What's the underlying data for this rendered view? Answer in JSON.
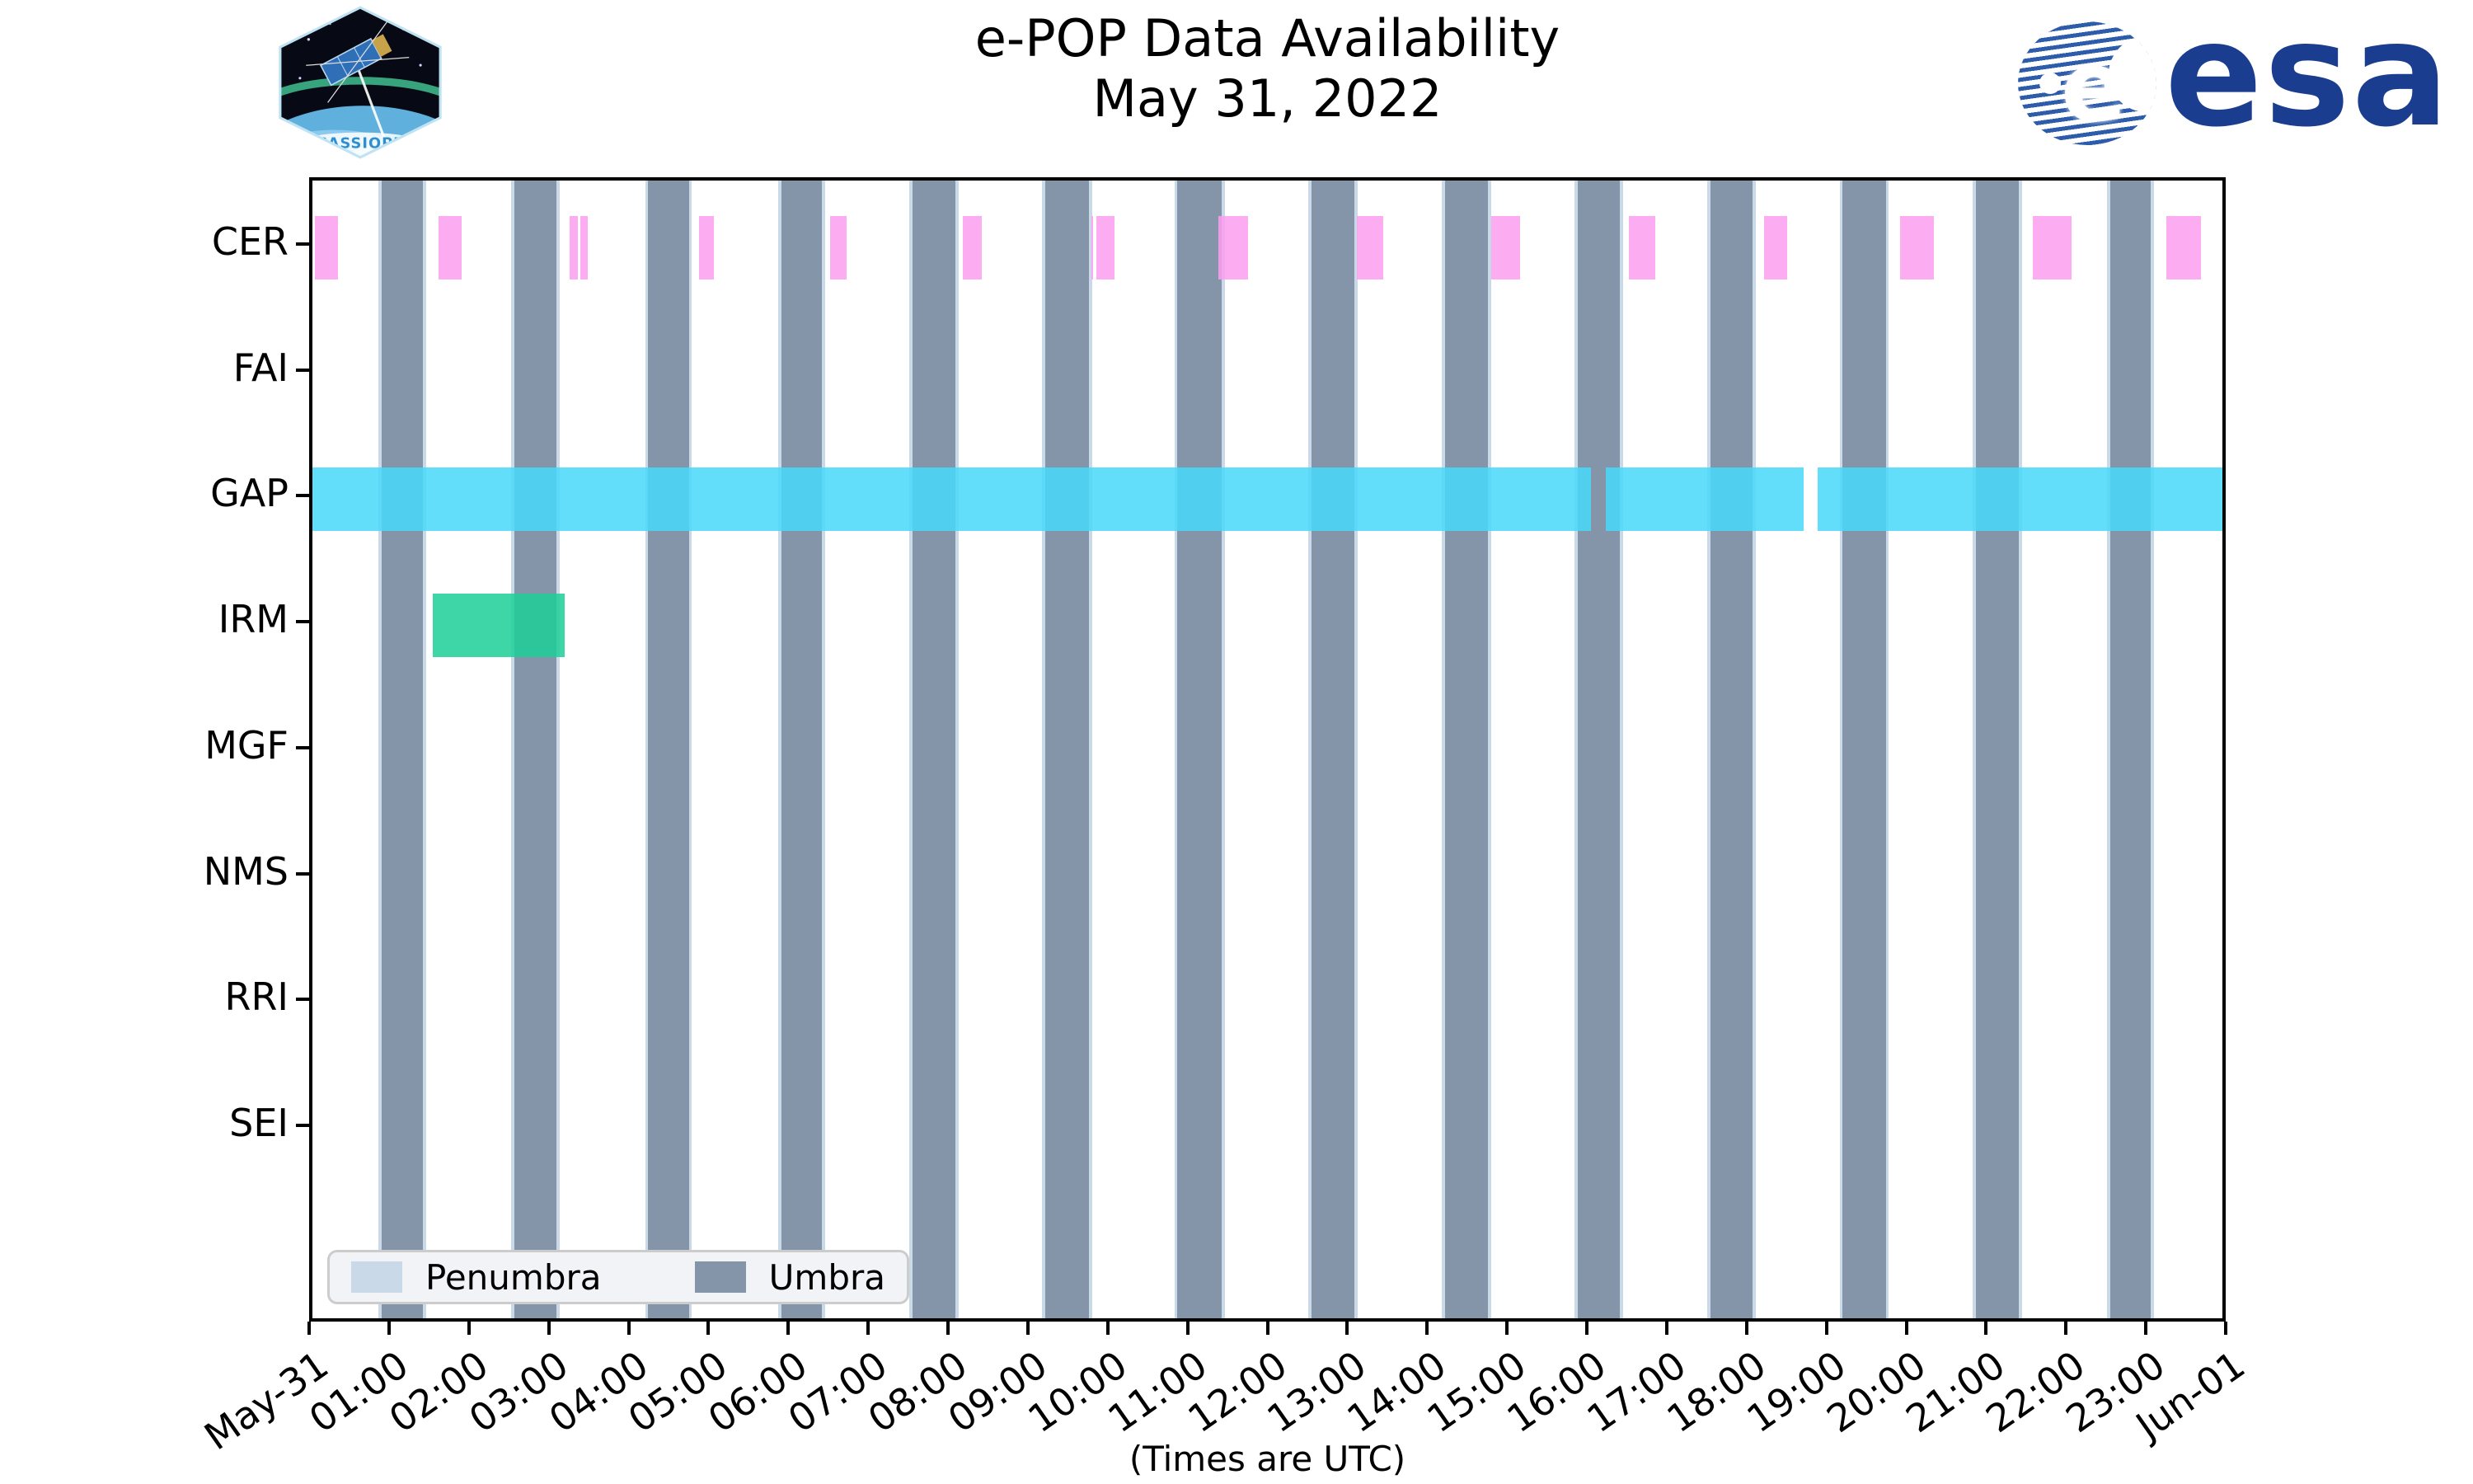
{
  "header": {
    "title_line1": "e-POP Data Availability",
    "title_line2": "May 31, 2022",
    "cassiope_badge_text": "CASSIOPE",
    "esa_wordmark": "esa"
  },
  "chart_data": {
    "type": "timeline",
    "title": "e-POP Data Availability",
    "subtitle": "May 31, 2022",
    "xlabel": "(Times are UTC)",
    "x_axis": {
      "unit": "hours UTC on 2022-05-31",
      "range_hours": [
        0,
        24
      ],
      "tick_hours": [
        0,
        1,
        2,
        3,
        4,
        5,
        6,
        7,
        8,
        9,
        10,
        11,
        12,
        13,
        14,
        15,
        16,
        17,
        18,
        19,
        20,
        21,
        22,
        23,
        24
      ],
      "tick_labels": [
        "May-31",
        "01:00",
        "02:00",
        "03:00",
        "04:00",
        "05:00",
        "06:00",
        "07:00",
        "08:00",
        "09:00",
        "10:00",
        "11:00",
        "12:00",
        "13:00",
        "14:00",
        "15:00",
        "16:00",
        "17:00",
        "18:00",
        "19:00",
        "20:00",
        "21:00",
        "22:00",
        "23:00",
        "Jun-01"
      ]
    },
    "y_categories": [
      "CER",
      "FAI",
      "GAP",
      "IRM",
      "MGF",
      "NMS",
      "RRI",
      "SEI"
    ],
    "series": [
      {
        "name": "CER",
        "row": "CER",
        "color": "rgba(252,158,239,0.85)",
        "intervals_hours": [
          [
            0.03,
            0.32
          ],
          [
            1.58,
            1.88
          ],
          [
            3.23,
            3.34
          ],
          [
            3.37,
            3.46
          ],
          [
            4.86,
            5.04
          ],
          [
            6.5,
            6.71
          ],
          [
            8.17,
            8.41
          ],
          [
            9.79,
            9.81
          ],
          [
            9.85,
            10.08
          ],
          [
            11.38,
            11.76
          ],
          [
            13.12,
            13.46
          ],
          [
            14.81,
            15.17
          ],
          [
            16.54,
            16.87
          ],
          [
            18.24,
            18.53
          ],
          [
            19.95,
            20.37
          ],
          [
            21.62,
            22.1
          ],
          [
            23.3,
            23.73
          ]
        ]
      },
      {
        "name": "GAP",
        "row": "GAP",
        "color": "rgba(72,217,249,0.86)",
        "intervals_hours": [
          [
            0.0,
            16.07
          ],
          [
            16.25,
            18.74
          ],
          [
            18.91,
            24.0
          ]
        ]
      },
      {
        "name": "IRM",
        "row": "IRM",
        "color": "rgba(28,207,152,0.85)",
        "intervals_hours": [
          [
            1.51,
            3.17
          ]
        ]
      }
    ],
    "eclipse_shading": {
      "umbra": {
        "color": "#8595A9",
        "intervals_hours": [
          [
            0.87,
            1.39
          ],
          [
            2.54,
            3.07
          ],
          [
            4.22,
            4.73
          ],
          [
            5.89,
            6.4
          ],
          [
            7.54,
            8.08
          ],
          [
            9.21,
            9.76
          ],
          [
            10.87,
            11.43
          ],
          [
            12.55,
            13.09
          ],
          [
            14.23,
            14.77
          ],
          [
            15.9,
            16.43
          ],
          [
            17.57,
            18.1
          ],
          [
            19.23,
            19.77
          ],
          [
            20.9,
            21.44
          ],
          [
            22.59,
            23.1
          ]
        ]
      },
      "penumbra": {
        "color": "#C9D9E8",
        "pad_hours": 0.04
      }
    },
    "legend": {
      "entries": [
        {
          "label": "Penumbra",
          "color": "#C9D9E8"
        },
        {
          "label": "Umbra",
          "color": "#8595A9"
        }
      ]
    }
  }
}
